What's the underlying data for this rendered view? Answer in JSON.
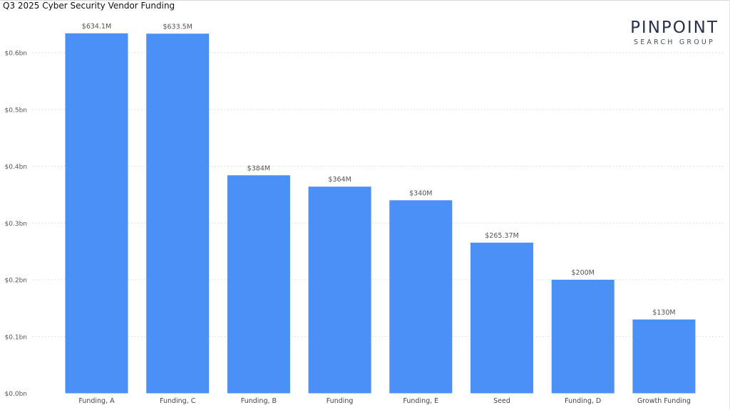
{
  "title": "Q3 2025 Cyber Security Vendor Funding",
  "logo": {
    "main": "PINPOINT",
    "sub": "SEARCH GROUP"
  },
  "colors": {
    "bar": "#4a90f7",
    "gridline": "#d9d9d9",
    "logo": "#29304a"
  },
  "chart_data": {
    "type": "bar",
    "title": "Q3 2025 Cyber Security Vendor Funding",
    "xlabel": "",
    "ylabel": "",
    "categories": [
      "Funding, A",
      "Funding, C",
      "Funding, B",
      "Funding",
      "Funding, E",
      "Seed",
      "Funding, D",
      "Growth Funding"
    ],
    "values": [
      634.1,
      633.5,
      384,
      364,
      340,
      265.37,
      200,
      130
    ],
    "value_unit": "$M",
    "data_labels": [
      "$634.1M",
      "$633.5M",
      "$384M",
      "$364M",
      "$340M",
      "$265.37M",
      "$200M",
      "$130M"
    ],
    "yticks": [
      0,
      100,
      200,
      300,
      400,
      500,
      600
    ],
    "ytick_labels": [
      "$0.0bn",
      "$0.1bn",
      "$0.2bn",
      "$0.3bn",
      "$0.4bn",
      "$0.5bn",
      "$0.6bn"
    ],
    "ylim": [
      0,
      690
    ],
    "grid": true,
    "legend": "none"
  }
}
